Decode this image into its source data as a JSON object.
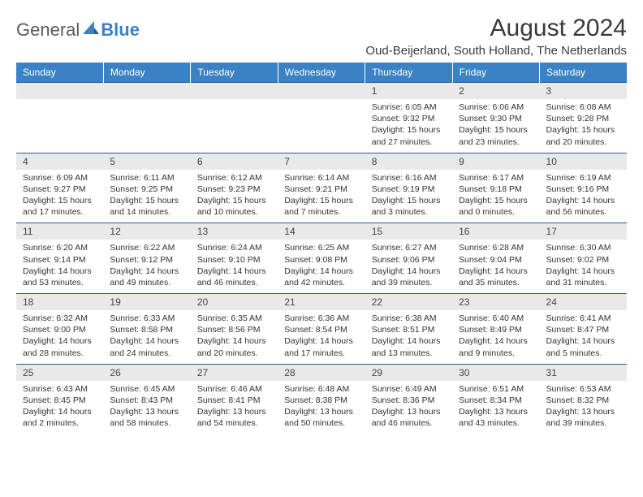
{
  "logo": {
    "name": "General",
    "accent": "Blue"
  },
  "title": "August 2024",
  "location": "Oud-Beijerland, South Holland, The Netherlands",
  "colors": {
    "header_bg": "#3b82c4",
    "daynum_bg": "#e9e9e9",
    "rule": "#2a5a8a"
  },
  "day_headers": [
    "Sunday",
    "Monday",
    "Tuesday",
    "Wednesday",
    "Thursday",
    "Friday",
    "Saturday"
  ],
  "weeks": [
    [
      {
        "n": "",
        "sunrise": "",
        "sunset": "",
        "daylight1": "",
        "daylight2": ""
      },
      {
        "n": "",
        "sunrise": "",
        "sunset": "",
        "daylight1": "",
        "daylight2": ""
      },
      {
        "n": "",
        "sunrise": "",
        "sunset": "",
        "daylight1": "",
        "daylight2": ""
      },
      {
        "n": "",
        "sunrise": "",
        "sunset": "",
        "daylight1": "",
        "daylight2": ""
      },
      {
        "n": "1",
        "sunrise": "Sunrise: 6:05 AM",
        "sunset": "Sunset: 9:32 PM",
        "daylight1": "Daylight: 15 hours",
        "daylight2": "and 27 minutes."
      },
      {
        "n": "2",
        "sunrise": "Sunrise: 6:06 AM",
        "sunset": "Sunset: 9:30 PM",
        "daylight1": "Daylight: 15 hours",
        "daylight2": "and 23 minutes."
      },
      {
        "n": "3",
        "sunrise": "Sunrise: 6:08 AM",
        "sunset": "Sunset: 9:28 PM",
        "daylight1": "Daylight: 15 hours",
        "daylight2": "and 20 minutes."
      }
    ],
    [
      {
        "n": "4",
        "sunrise": "Sunrise: 6:09 AM",
        "sunset": "Sunset: 9:27 PM",
        "daylight1": "Daylight: 15 hours",
        "daylight2": "and 17 minutes."
      },
      {
        "n": "5",
        "sunrise": "Sunrise: 6:11 AM",
        "sunset": "Sunset: 9:25 PM",
        "daylight1": "Daylight: 15 hours",
        "daylight2": "and 14 minutes."
      },
      {
        "n": "6",
        "sunrise": "Sunrise: 6:12 AM",
        "sunset": "Sunset: 9:23 PM",
        "daylight1": "Daylight: 15 hours",
        "daylight2": "and 10 minutes."
      },
      {
        "n": "7",
        "sunrise": "Sunrise: 6:14 AM",
        "sunset": "Sunset: 9:21 PM",
        "daylight1": "Daylight: 15 hours",
        "daylight2": "and 7 minutes."
      },
      {
        "n": "8",
        "sunrise": "Sunrise: 6:16 AM",
        "sunset": "Sunset: 9:19 PM",
        "daylight1": "Daylight: 15 hours",
        "daylight2": "and 3 minutes."
      },
      {
        "n": "9",
        "sunrise": "Sunrise: 6:17 AM",
        "sunset": "Sunset: 9:18 PM",
        "daylight1": "Daylight: 15 hours",
        "daylight2": "and 0 minutes."
      },
      {
        "n": "10",
        "sunrise": "Sunrise: 6:19 AM",
        "sunset": "Sunset: 9:16 PM",
        "daylight1": "Daylight: 14 hours",
        "daylight2": "and 56 minutes."
      }
    ],
    [
      {
        "n": "11",
        "sunrise": "Sunrise: 6:20 AM",
        "sunset": "Sunset: 9:14 PM",
        "daylight1": "Daylight: 14 hours",
        "daylight2": "and 53 minutes."
      },
      {
        "n": "12",
        "sunrise": "Sunrise: 6:22 AM",
        "sunset": "Sunset: 9:12 PM",
        "daylight1": "Daylight: 14 hours",
        "daylight2": "and 49 minutes."
      },
      {
        "n": "13",
        "sunrise": "Sunrise: 6:24 AM",
        "sunset": "Sunset: 9:10 PM",
        "daylight1": "Daylight: 14 hours",
        "daylight2": "and 46 minutes."
      },
      {
        "n": "14",
        "sunrise": "Sunrise: 6:25 AM",
        "sunset": "Sunset: 9:08 PM",
        "daylight1": "Daylight: 14 hours",
        "daylight2": "and 42 minutes."
      },
      {
        "n": "15",
        "sunrise": "Sunrise: 6:27 AM",
        "sunset": "Sunset: 9:06 PM",
        "daylight1": "Daylight: 14 hours",
        "daylight2": "and 39 minutes."
      },
      {
        "n": "16",
        "sunrise": "Sunrise: 6:28 AM",
        "sunset": "Sunset: 9:04 PM",
        "daylight1": "Daylight: 14 hours",
        "daylight2": "and 35 minutes."
      },
      {
        "n": "17",
        "sunrise": "Sunrise: 6:30 AM",
        "sunset": "Sunset: 9:02 PM",
        "daylight1": "Daylight: 14 hours",
        "daylight2": "and 31 minutes."
      }
    ],
    [
      {
        "n": "18",
        "sunrise": "Sunrise: 6:32 AM",
        "sunset": "Sunset: 9:00 PM",
        "daylight1": "Daylight: 14 hours",
        "daylight2": "and 28 minutes."
      },
      {
        "n": "19",
        "sunrise": "Sunrise: 6:33 AM",
        "sunset": "Sunset: 8:58 PM",
        "daylight1": "Daylight: 14 hours",
        "daylight2": "and 24 minutes."
      },
      {
        "n": "20",
        "sunrise": "Sunrise: 6:35 AM",
        "sunset": "Sunset: 8:56 PM",
        "daylight1": "Daylight: 14 hours",
        "daylight2": "and 20 minutes."
      },
      {
        "n": "21",
        "sunrise": "Sunrise: 6:36 AM",
        "sunset": "Sunset: 8:54 PM",
        "daylight1": "Daylight: 14 hours",
        "daylight2": "and 17 minutes."
      },
      {
        "n": "22",
        "sunrise": "Sunrise: 6:38 AM",
        "sunset": "Sunset: 8:51 PM",
        "daylight1": "Daylight: 14 hours",
        "daylight2": "and 13 minutes."
      },
      {
        "n": "23",
        "sunrise": "Sunrise: 6:40 AM",
        "sunset": "Sunset: 8:49 PM",
        "daylight1": "Daylight: 14 hours",
        "daylight2": "and 9 minutes."
      },
      {
        "n": "24",
        "sunrise": "Sunrise: 6:41 AM",
        "sunset": "Sunset: 8:47 PM",
        "daylight1": "Daylight: 14 hours",
        "daylight2": "and 5 minutes."
      }
    ],
    [
      {
        "n": "25",
        "sunrise": "Sunrise: 6:43 AM",
        "sunset": "Sunset: 8:45 PM",
        "daylight1": "Daylight: 14 hours",
        "daylight2": "and 2 minutes."
      },
      {
        "n": "26",
        "sunrise": "Sunrise: 6:45 AM",
        "sunset": "Sunset: 8:43 PM",
        "daylight1": "Daylight: 13 hours",
        "daylight2": "and 58 minutes."
      },
      {
        "n": "27",
        "sunrise": "Sunrise: 6:46 AM",
        "sunset": "Sunset: 8:41 PM",
        "daylight1": "Daylight: 13 hours",
        "daylight2": "and 54 minutes."
      },
      {
        "n": "28",
        "sunrise": "Sunrise: 6:48 AM",
        "sunset": "Sunset: 8:38 PM",
        "daylight1": "Daylight: 13 hours",
        "daylight2": "and 50 minutes."
      },
      {
        "n": "29",
        "sunrise": "Sunrise: 6:49 AM",
        "sunset": "Sunset: 8:36 PM",
        "daylight1": "Daylight: 13 hours",
        "daylight2": "and 46 minutes."
      },
      {
        "n": "30",
        "sunrise": "Sunrise: 6:51 AM",
        "sunset": "Sunset: 8:34 PM",
        "daylight1": "Daylight: 13 hours",
        "daylight2": "and 43 minutes."
      },
      {
        "n": "31",
        "sunrise": "Sunrise: 6:53 AM",
        "sunset": "Sunset: 8:32 PM",
        "daylight1": "Daylight: 13 hours",
        "daylight2": "and 39 minutes."
      }
    ]
  ]
}
